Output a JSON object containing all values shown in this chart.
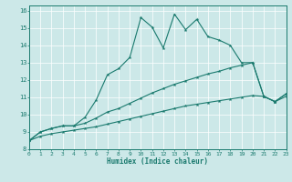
{
  "xlabel": "Humidex (Indice chaleur)",
  "xlim": [
    0,
    23
  ],
  "ylim": [
    8,
    16.3
  ],
  "xticks": [
    0,
    1,
    2,
    3,
    4,
    5,
    6,
    7,
    8,
    9,
    10,
    11,
    12,
    13,
    14,
    15,
    16,
    17,
    18,
    19,
    20,
    21,
    22,
    23
  ],
  "yticks": [
    8,
    9,
    10,
    11,
    12,
    13,
    14,
    15,
    16
  ],
  "bg_color": "#cce8e8",
  "line_color": "#1a7a6e",
  "line1_x": [
    0,
    1,
    2,
    3,
    4,
    5,
    6,
    7,
    8,
    9,
    10,
    11,
    12,
    13,
    14,
    15,
    16,
    17,
    18,
    19,
    20,
    21,
    22,
    23
  ],
  "line1_y": [
    8.5,
    9.0,
    9.2,
    9.35,
    9.35,
    9.85,
    10.85,
    12.3,
    12.65,
    13.3,
    15.6,
    15.05,
    13.85,
    15.8,
    14.9,
    15.5,
    14.5,
    14.3,
    14.0,
    13.0,
    13.0,
    11.05,
    10.75,
    11.2
  ],
  "line2_x": [
    0,
    1,
    2,
    3,
    4,
    5,
    6,
    7,
    8,
    9,
    10,
    11,
    12,
    13,
    14,
    15,
    16,
    17,
    18,
    19,
    20,
    21,
    22,
    23
  ],
  "line2_y": [
    8.5,
    9.0,
    9.2,
    9.35,
    9.35,
    9.5,
    9.8,
    10.15,
    10.35,
    10.65,
    10.95,
    11.25,
    11.5,
    11.75,
    11.95,
    12.15,
    12.35,
    12.5,
    12.7,
    12.85,
    13.0,
    11.05,
    10.75,
    11.2
  ],
  "line3_x": [
    0,
    1,
    2,
    3,
    4,
    5,
    6,
    7,
    8,
    9,
    10,
    11,
    12,
    13,
    14,
    15,
    16,
    17,
    18,
    19,
    20,
    21,
    22,
    23
  ],
  "line3_y": [
    8.5,
    8.75,
    8.9,
    9.0,
    9.1,
    9.2,
    9.3,
    9.45,
    9.6,
    9.75,
    9.9,
    10.05,
    10.2,
    10.35,
    10.5,
    10.6,
    10.7,
    10.8,
    10.9,
    11.0,
    11.1,
    11.05,
    10.75,
    11.05
  ]
}
